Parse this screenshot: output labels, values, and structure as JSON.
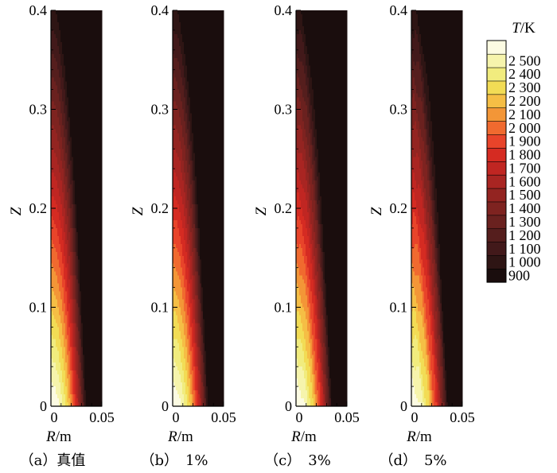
{
  "chart_data": {
    "type": "heatmap",
    "panels": [
      {
        "id": "a",
        "caption": "（a）真值",
        "noise_percent": 0
      },
      {
        "id": "b",
        "caption": "（b）　1%",
        "noise_percent": 1
      },
      {
        "id": "c",
        "caption": "（c）　3%",
        "noise_percent": 3
      },
      {
        "id": "d",
        "caption": "（d）　5%",
        "noise_percent": 5
      }
    ],
    "x_axis": {
      "label_var": "R",
      "label_unit": "/m",
      "range": [
        0,
        0.05
      ],
      "ticks": [
        "0",
        "0.05"
      ]
    },
    "y_axis": {
      "label": "Z",
      "range": [
        0,
        0.4
      ],
      "ticks": [
        "0",
        "0.1",
        "0.2",
        "0.3",
        "0.4"
      ]
    },
    "colorbar": {
      "title_var": "T",
      "title_unit": "/K",
      "levels": [
        900,
        1000,
        1100,
        1200,
        1300,
        1400,
        1500,
        1600,
        1700,
        1800,
        1900,
        2000,
        2100,
        2200,
        2300,
        2400,
        2500
      ],
      "labels": [
        "900",
        "1 000",
        "1 100",
        "1 200",
        "1 300",
        "1 400",
        "1 500",
        "1 600",
        "1 700",
        "1 800",
        "1 900",
        "2 000",
        "2 100",
        "2 200",
        "2 300",
        "2 400",
        "2 500"
      ],
      "colors": [
        "#1a0d0d",
        "#2e1514",
        "#42191a",
        "#551e1d",
        "#6a211f",
        "#7e2320",
        "#932421",
        "#a92522",
        "#c02622",
        "#d52b22",
        "#e8442a",
        "#f06a2f",
        "#f39637",
        "#f5be45",
        "#f2dc55",
        "#f1ec7e",
        "#f6f4ac",
        "#fcfbe2"
      ]
    }
  }
}
